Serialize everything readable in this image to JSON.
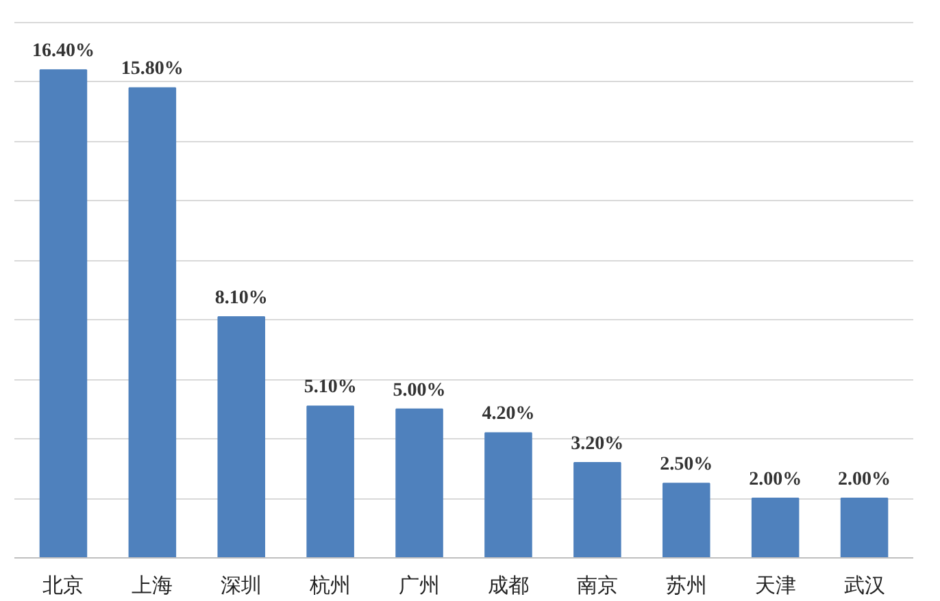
{
  "chart_data": {
    "type": "bar",
    "categories": [
      "北京",
      "上海",
      "深圳",
      "杭州",
      "广州",
      "成都",
      "南京",
      "苏州",
      "天津",
      "武汉"
    ],
    "values": [
      16.4,
      15.8,
      8.1,
      5.1,
      5.0,
      4.2,
      3.2,
      2.5,
      2.0,
      2.0
    ],
    "value_labels": [
      "16.40%",
      "15.80%",
      "8.10%",
      "5.10%",
      "5.00%",
      "4.20%",
      "3.20%",
      "2.50%",
      "2.00%",
      "2.00%"
    ],
    "color": "#4f81bd",
    "yticks": [
      {
        "value": 0,
        "label": null
      },
      {
        "value": 2,
        "label": null
      },
      {
        "value": 4,
        "label": null
      },
      {
        "value": 6,
        "label": null
      },
      {
        "value": 8,
        "label": null
      },
      {
        "value": 10,
        "label": null
      },
      {
        "value": 12,
        "label": null
      },
      {
        "value": 14,
        "label": null
      },
      {
        "value": 16,
        "label": null
      },
      {
        "value": 18,
        "label": null
      }
    ],
    "grid": "y",
    "tick_labels": "x"
  }
}
